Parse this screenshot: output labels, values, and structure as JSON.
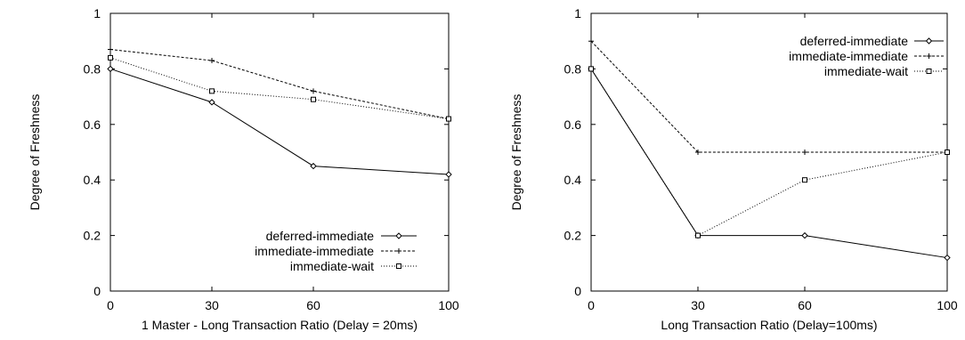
{
  "chart_data": [
    {
      "type": "line",
      "xlabel": "1 Master - Long Transaction Ratio (Delay = 20ms)",
      "ylabel": "Degree of Freshness",
      "x": [
        0,
        30,
        60,
        100
      ],
      "x_ticks": [
        "0",
        "30",
        "60",
        "100"
      ],
      "y_ticks": [
        "0",
        "0.2",
        "0.4",
        "0.6",
        "0.8",
        "1"
      ],
      "xlim": [
        0,
        100
      ],
      "ylim": [
        0,
        1
      ],
      "grid": false,
      "legend_position": "bottom-right",
      "series": [
        {
          "name": "deferred-immediate",
          "values": [
            0.8,
            0.68,
            0.45,
            0.42
          ],
          "marker": "diamond",
          "dash": "solid"
        },
        {
          "name": "immediate-immediate",
          "values": [
            0.87,
            0.83,
            0.72,
            0.62
          ],
          "marker": "plus",
          "dash": "dashed"
        },
        {
          "name": "immediate-wait",
          "values": [
            0.84,
            0.72,
            0.69,
            0.62
          ],
          "marker": "square",
          "dash": "dotted"
        }
      ]
    },
    {
      "type": "line",
      "xlabel": "Long Transaction Ratio (Delay=100ms)",
      "ylabel": "Degree of Freshness",
      "x": [
        0,
        30,
        60,
        100
      ],
      "x_ticks": [
        "0",
        "30",
        "60",
        "100"
      ],
      "y_ticks": [
        "0",
        "0.2",
        "0.4",
        "0.6",
        "0.8",
        "1"
      ],
      "xlim": [
        0,
        100
      ],
      "ylim": [
        0,
        1
      ],
      "grid": false,
      "legend_position": "top-right",
      "series": [
        {
          "name": "deferred-immediate",
          "values": [
            0.8,
            0.2,
            0.2,
            0.12
          ],
          "marker": "diamond",
          "dash": "solid"
        },
        {
          "name": "immediate-immediate",
          "values": [
            0.9,
            0.5,
            0.5,
            0.5
          ],
          "marker": "plus",
          "dash": "dashed"
        },
        {
          "name": "immediate-wait",
          "values": [
            0.8,
            0.2,
            0.4,
            0.5
          ],
          "marker": "square",
          "dash": "dotted"
        }
      ]
    }
  ]
}
